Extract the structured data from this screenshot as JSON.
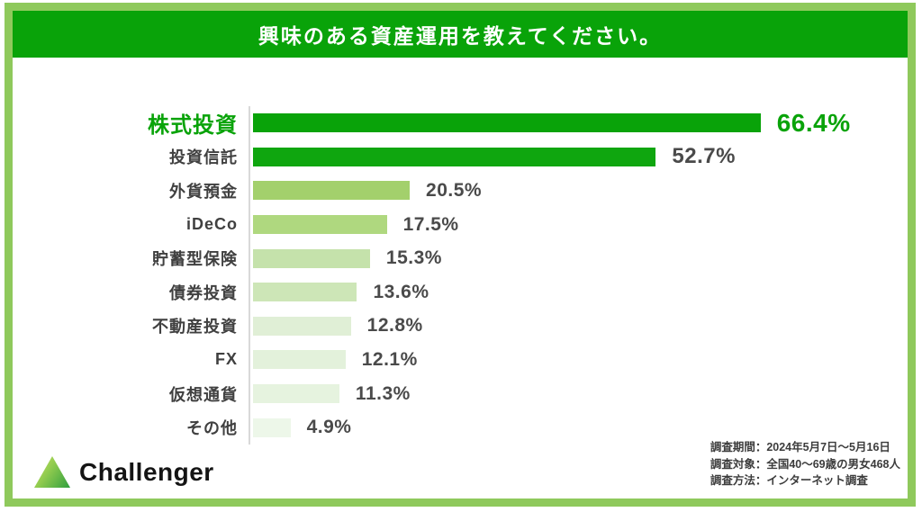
{
  "title": "興味のある資産運用を教えてください。",
  "colors": {
    "frame_border_green": "#8fc95c",
    "title_bar_green": "#09a309",
    "highlight_green": "#09a309",
    "value_text_gray": "#4a4a4a",
    "label_text_gray": "#404040",
    "axis_line_gray": "#d9d9d9"
  },
  "chart_data": {
    "type": "bar",
    "orientation": "horizontal",
    "title": "興味のある資産運用を教えてください。",
    "unit": "%",
    "xlim": [
      0,
      70
    ],
    "grid": false,
    "legend": false,
    "categories": [
      "株式投資",
      "投資信託",
      "外貨預金",
      "iDeCo",
      "貯蓄型保険",
      "債券投資",
      "不動産投資",
      "FX",
      "仮想通貨",
      "その他"
    ],
    "values": [
      66.4,
      52.7,
      20.5,
      17.5,
      15.3,
      13.6,
      12.8,
      12.1,
      11.3,
      4.9
    ],
    "value_labels": [
      "66.4%",
      "52.7%",
      "20.5%",
      "17.5%",
      "15.3%",
      "13.6%",
      "12.8%",
      "12.1%",
      "11.3%",
      "4.9%"
    ],
    "bar_colors": [
      "#09a309",
      "#0fa60f",
      "#a3d06c",
      "#afd87f",
      "#c5e2ab",
      "#cde6b7",
      "#e0efd6",
      "#e3f1db",
      "#e6f3df",
      "#edf7e9"
    ],
    "highlight_index": 0
  },
  "footer": {
    "brand": "Challenger",
    "survey": [
      "調査期間：2024年5月7日～5月16日",
      "調査対象：全国40～69歳の男女468人",
      "調査方法：インターネット調査"
    ]
  }
}
